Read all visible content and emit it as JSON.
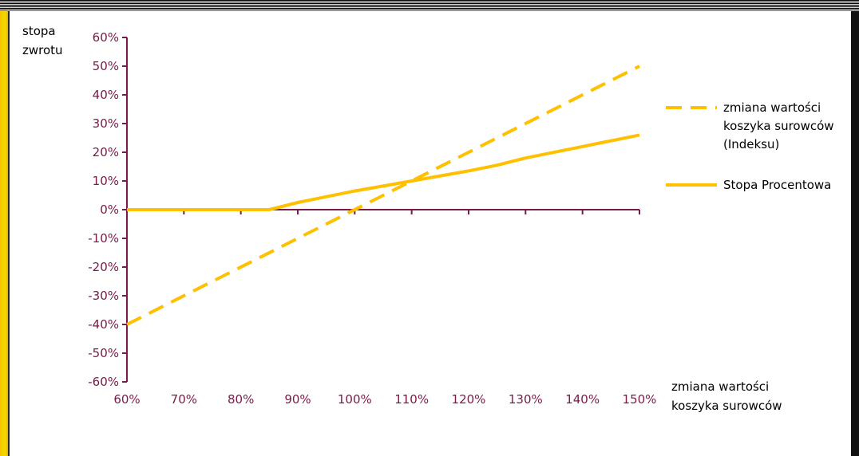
{
  "chart_data": {
    "type": "line",
    "ylabel_lines": [
      "stopa",
      "zwrotu"
    ],
    "xlabel_lines": [
      "zmiana wartości",
      "koszyka surowców"
    ],
    "x": [
      60,
      70,
      80,
      85,
      90,
      100,
      110,
      120,
      125,
      130,
      140,
      150
    ],
    "x_ticks": [
      "60%",
      "70%",
      "80%",
      "90%",
      "100%",
      "110%",
      "120%",
      "130%",
      "140%",
      "150%"
    ],
    "y_ticks": [
      "60%",
      "50%",
      "40%",
      "30%",
      "20%",
      "10%",
      "0%",
      "-10%",
      "-20%",
      "-30%",
      "-40%",
      "-50%",
      "-60%"
    ],
    "xlim": [
      60,
      150
    ],
    "ylim": [
      -60,
      60
    ],
    "series": [
      {
        "name_lines": [
          "zmiana wartości",
          "koszyka surowców",
          "(Indeksu)"
        ],
        "style": "dashed",
        "x": [
          60,
          150
        ],
        "values": [
          -40,
          50
        ]
      },
      {
        "name_lines": [
          "Stopa Procentowa"
        ],
        "style": "solid",
        "x": [
          60,
          85,
          90,
          100,
          110,
          120,
          125,
          130,
          140,
          150
        ],
        "values": [
          0,
          0,
          2.5,
          6.5,
          10,
          13.5,
          15.5,
          18,
          22,
          26
        ]
      }
    ],
    "colors": {
      "series": "#FFC000",
      "axis": "#7a1a4a",
      "tick_text": "#7a1a4a"
    },
    "legend_position": "right",
    "grid": false
  }
}
